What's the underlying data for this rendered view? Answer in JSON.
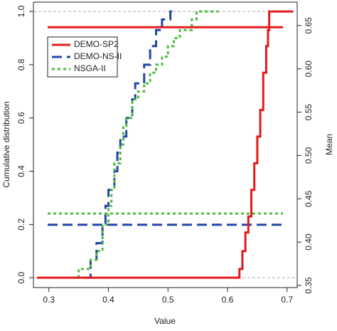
{
  "chart_data": {
    "type": "ecdf",
    "xlabel": "Value",
    "ylabel": "Cumulative distribution",
    "y2label": "Mean",
    "xlim": [
      0.274,
      0.717
    ],
    "xticks": [
      0.3,
      0.4,
      0.5,
      0.6,
      0.7
    ],
    "ylim": [
      -0.037,
      1.035
    ],
    "yticks": [
      {
        "value": 0,
        "label": "0.0"
      },
      0.2,
      0.4,
      0.6,
      0.8,
      {
        "value": 1,
        "label": "1.0"
      }
    ],
    "y2lim": [
      0.3475,
      0.677
    ],
    "y2ticks": [
      0.35,
      {
        "value": 0.4,
        "label": "0.40"
      },
      0.45,
      {
        "value": 0.5,
        "label": "0.50"
      },
      0.55,
      {
        "value": 0.6,
        "label": "0.60"
      },
      0.65
    ],
    "hlines": [
      0,
      1
    ],
    "legend": "top-left",
    "series": [
      {
        "name": "DEMO-SP2",
        "color": "#e41a1c",
        "style": "solid",
        "mean": 0.648,
        "x": [
          0.28,
          0.62,
          0.625,
          0.63,
          0.635,
          0.64,
          0.645,
          0.65,
          0.655,
          0.66,
          0.665,
          0.668,
          0.67,
          0.71
        ],
        "values": [
          0,
          0.033,
          0.1,
          0.17,
          0.23,
          0.33,
          0.43,
          0.53,
          0.63,
          0.77,
          0.87,
          0.93,
          1,
          1
        ]
      },
      {
        "name": "DEMO-NS-II",
        "color": "#2346a8",
        "style": "dashed",
        "mean": 0.42,
        "x": [
          0.36,
          0.37,
          0.38,
          0.39,
          0.395,
          0.4,
          0.41,
          0.415,
          0.42,
          0.43,
          0.44,
          0.445,
          0.46,
          0.47,
          0.48,
          0.49,
          0.504,
          0.51
        ],
        "values": [
          0,
          0.067,
          0.13,
          0.2,
          0.27,
          0.33,
          0.4,
          0.47,
          0.53,
          0.6,
          0.67,
          0.73,
          0.8,
          0.87,
          0.93,
          0.97,
          1,
          1
        ]
      },
      {
        "name": "NSGA-II",
        "color": "#4dbb3f",
        "style": "dotted",
        "mean": 0.433,
        "x": [
          0.34,
          0.35,
          0.37,
          0.38,
          0.39,
          0.4,
          0.405,
          0.41,
          0.42,
          0.425,
          0.43,
          0.44,
          0.45,
          0.46,
          0.47,
          0.48,
          0.49,
          0.5,
          0.51,
          0.52,
          0.54,
          0.548,
          0.585
        ],
        "values": [
          0,
          0.033,
          0.067,
          0.1,
          0.2,
          0.27,
          0.33,
          0.43,
          0.5,
          0.57,
          0.6,
          0.67,
          0.7,
          0.73,
          0.77,
          0.8,
          0.83,
          0.87,
          0.9,
          0.93,
          0.97,
          1,
          1
        ]
      }
    ]
  }
}
